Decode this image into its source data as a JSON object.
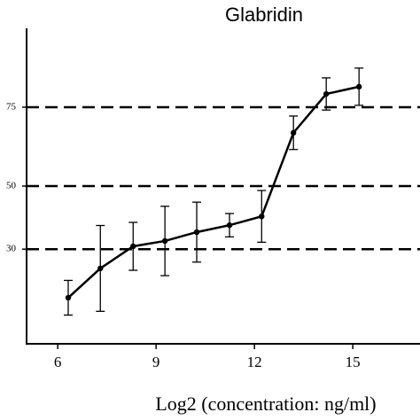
{
  "chart_data": {
    "type": "line",
    "title": "Glabridin",
    "x_label": "Log2 (concentration: ng/ml)",
    "x": [
      6.32,
      7.3,
      8.3,
      9.27,
      10.24,
      11.24,
      12.22,
      13.19,
      14.19,
      15.19
    ],
    "series": [
      {
        "color": "#000000",
        "values": [
          14.6,
          23.9,
          30.9,
          32.6,
          35.4,
          37.6,
          40.4,
          66.9,
          79.2,
          81.5
        ],
        "errors": [
          5.5,
          13.6,
          7.6,
          11,
          9.5,
          3.7,
          8.2,
          5.3,
          5.1,
          5.9
        ]
      }
    ],
    "xlim": [
      5.05,
      17.05
    ],
    "xticks": [
      6,
      9,
      12,
      15
    ],
    "ylim": [
      0,
      100
    ],
    "yticks": [
      30,
      50,
      75
    ],
    "grid": true
  }
}
